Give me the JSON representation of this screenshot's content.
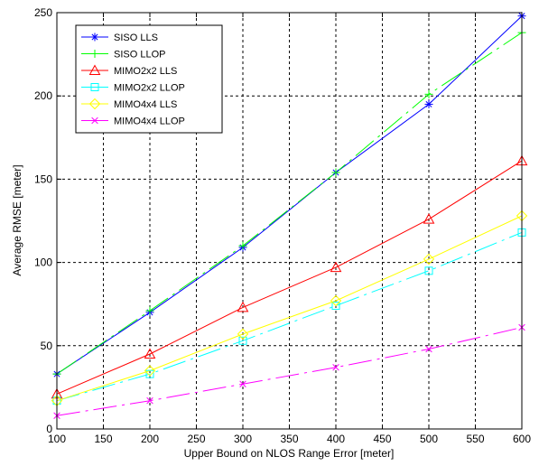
{
  "chart_data": {
    "type": "line",
    "title": "",
    "xlabel": "Upper Bound on NLOS Range Error [meter]",
    "ylabel": "Average RMSE [meter]",
    "xlim": [
      100,
      600
    ],
    "ylim": [
      0,
      250
    ],
    "xticks": [
      100,
      150,
      200,
      250,
      300,
      350,
      400,
      450,
      500,
      550,
      600
    ],
    "yticks": [
      0,
      50,
      100,
      150,
      200,
      250
    ],
    "grid": true,
    "legend_position": "top-left",
    "x": [
      100,
      200,
      300,
      400,
      500,
      600
    ],
    "series": [
      {
        "name": "SISO LLS",
        "values": [
          33,
          70,
          109,
          154,
          195,
          248
        ],
        "color": "#0000ff",
        "dash": "solid",
        "marker": "asterisk"
      },
      {
        "name": "SISO LLOP",
        "values": [
          33,
          71,
          110,
          154,
          201,
          238
        ],
        "color": "#00ff00",
        "dash": "dashdot",
        "marker": "plus"
      },
      {
        "name": "MIMO2x2 LLS",
        "values": [
          21,
          45,
          73,
          97,
          126,
          161
        ],
        "color": "#ff0000",
        "dash": "solid",
        "marker": "triangle"
      },
      {
        "name": "MIMO2x2 LLOP",
        "values": [
          17,
          33,
          53,
          74,
          95,
          118
        ],
        "color": "#00ffff",
        "dash": "dashdot",
        "marker": "square"
      },
      {
        "name": "MIMO4x4 LLS",
        "values": [
          17,
          35,
          57,
          77,
          102,
          128
        ],
        "color": "#ffff00",
        "dash": "solid",
        "marker": "diamond"
      },
      {
        "name": "MIMO4x4 LLOP",
        "values": [
          8,
          17,
          27,
          37,
          48,
          61
        ],
        "color": "#ff00ff",
        "dash": "dashdot",
        "marker": "x"
      }
    ]
  }
}
